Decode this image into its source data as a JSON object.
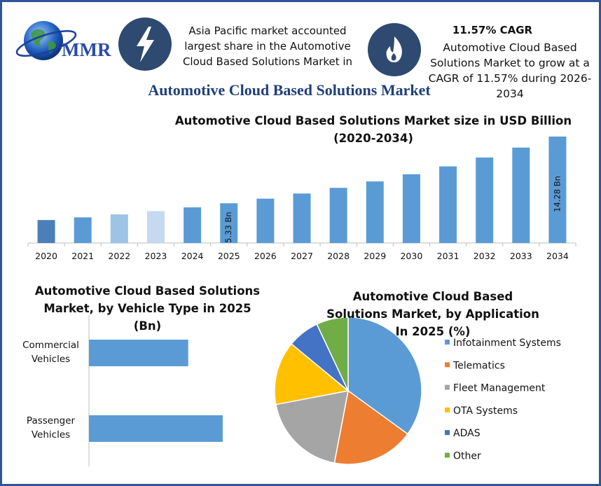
{
  "header": {
    "logo": "MMR",
    "region_note": "Asia Pacific market accounted largest share in the Automotive Cloud Based Solutions Market in",
    "cagr_title": "11.57% CAGR",
    "cagr_note": "Automotive Cloud Based Solutions Market to grow at a CAGR of 11.57% during 2026-2034",
    "title": "Automotive Cloud Based Solutions Market"
  },
  "chart_data": [
    {
      "type": "bar",
      "title": "Automotive Cloud Based Solutions Market size in USD Billion (2020-2034)",
      "categories": [
        "2020",
        "2021",
        "2022",
        "2023",
        "2024",
        "2025",
        "2026",
        "2027",
        "2028",
        "2029",
        "2030",
        "2031",
        "2032",
        "2033",
        "2034"
      ],
      "values": [
        3.08,
        3.44,
        3.84,
        4.28,
        4.78,
        5.33,
        5.95,
        6.64,
        7.4,
        8.26,
        9.22,
        10.28,
        11.47,
        12.8,
        14.28
      ],
      "value_labels": [
        null,
        null,
        null,
        null,
        null,
        "5.33 Bn",
        null,
        null,
        null,
        null,
        null,
        null,
        null,
        null,
        "14.28 Bn"
      ],
      "colors": [
        "#4a80b8",
        "#5b9bd5",
        "#9dc3e6",
        "#c5d9f1",
        "#5b9bd5",
        "#5b9bd5",
        "#5b9bd5",
        "#5b9bd5",
        "#5b9bd5",
        "#5b9bd5",
        "#5b9bd5",
        "#5b9bd5",
        "#5b9bd5",
        "#5b9bd5",
        "#5b9bd5"
      ]
    },
    {
      "type": "hbar",
      "title": "Automotive Cloud Based Solutions Market, by Vehicle Type in 2025 (Bn)",
      "categories": [
        "Commercial Vehicles",
        "Passenger Vehicles"
      ],
      "values": [
        2.27,
        3.06
      ],
      "color": "#5b9bd5"
    },
    {
      "type": "pie",
      "title": "Automotive Cloud Based Solutions Market, by Application In 2025 (%)",
      "categories": [
        "Infotainment Systems",
        "Telematics",
        "Fleet Management",
        "OTA Systems",
        "ADAS",
        "Other"
      ],
      "values": [
        35,
        18,
        19,
        14,
        7,
        7
      ],
      "colors": [
        "#5b9bd5",
        "#ed7d31",
        "#a5a5a5",
        "#ffc000",
        "#4472c4",
        "#70ad47"
      ],
      "legend": "right"
    }
  ]
}
